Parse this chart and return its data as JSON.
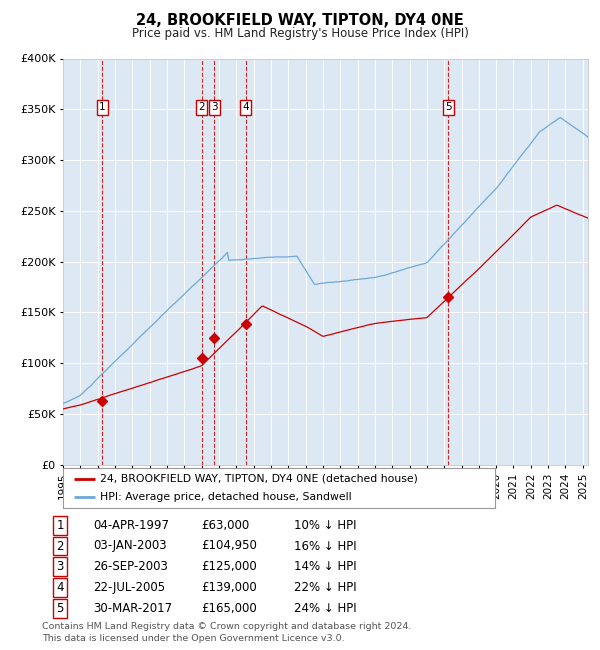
{
  "title": "24, BROOKFIELD WAY, TIPTON, DY4 0NE",
  "subtitle": "Price paid vs. HM Land Registry's House Price Index (HPI)",
  "plot_bg_color": "#dce9f5",
  "hpi_line_color": "#6fa8d5",
  "price_line_color": "#cc0000",
  "marker_color": "#cc0000",
  "vline_color": "#cc0000",
  "ylim": [
    0,
    400000
  ],
  "yticks": [
    0,
    50000,
    100000,
    150000,
    200000,
    250000,
    300000,
    350000,
    400000
  ],
  "xlim_start": 1995.0,
  "xlim_end": 2025.3,
  "xtick_years": [
    1995,
    1996,
    1997,
    1998,
    1999,
    2000,
    2001,
    2002,
    2003,
    2004,
    2005,
    2006,
    2007,
    2008,
    2009,
    2010,
    2011,
    2012,
    2013,
    2014,
    2015,
    2016,
    2017,
    2018,
    2019,
    2020,
    2021,
    2022,
    2023,
    2024,
    2025
  ],
  "legend_label_red": "24, BROOKFIELD WAY, TIPTON, DY4 0NE (detached house)",
  "legend_label_blue": "HPI: Average price, detached house, Sandwell",
  "footer": "Contains HM Land Registry data © Crown copyright and database right 2024.\nThis data is licensed under the Open Government Licence v3.0.",
  "sales": [
    {
      "num": 1,
      "date": "04-APR-1997",
      "year": 1997.26,
      "price": 63000,
      "hpi_pct": "10% ↓ HPI"
    },
    {
      "num": 2,
      "date": "03-JAN-2003",
      "year": 2003.01,
      "price": 104950,
      "hpi_pct": "16% ↓ HPI"
    },
    {
      "num": 3,
      "date": "26-SEP-2003",
      "year": 2003.74,
      "price": 125000,
      "hpi_pct": "14% ↓ HPI"
    },
    {
      "num": 4,
      "date": "22-JUL-2005",
      "year": 2005.55,
      "price": 139000,
      "hpi_pct": "22% ↓ HPI"
    },
    {
      "num": 5,
      "date": "30-MAR-2017",
      "year": 2017.24,
      "price": 165000,
      "hpi_pct": "24% ↓ HPI"
    }
  ]
}
